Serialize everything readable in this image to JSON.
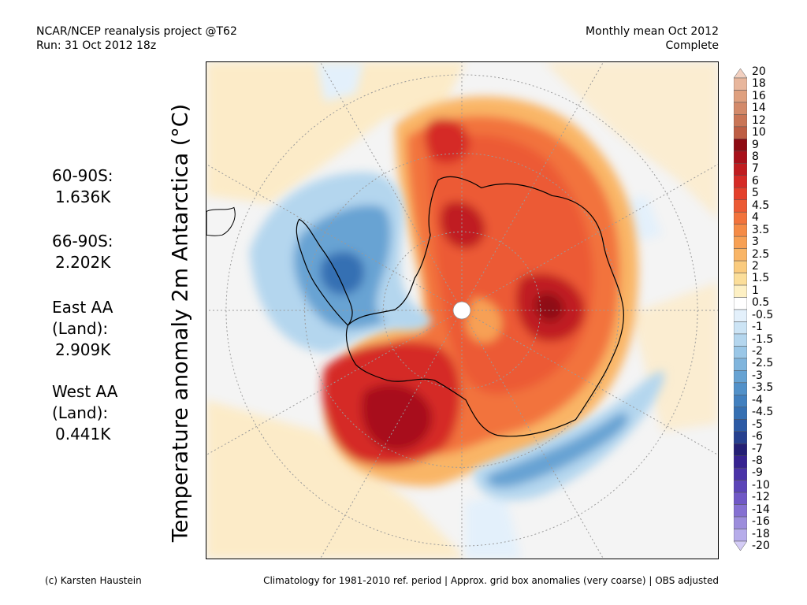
{
  "header": {
    "line1_left": "NCAR/NCEP reanalysis project @T62",
    "line2_left": "Run: 31 Oct 2012 18z",
    "line1_right": "Monthly mean Oct 2012",
    "line2_right": "Complete"
  },
  "ylabel": "Temperature anomaly 2m Antarctica (°C)",
  "stats": [
    {
      "lines": [
        "60-90S:",
        "1.636K"
      ]
    },
    {
      "lines": [
        "66-90S:",
        "2.202K"
      ]
    },
    {
      "lines": [
        "East AA",
        "(Land):",
        "2.909K"
      ]
    },
    {
      "lines": [
        "West AA",
        "(Land):",
        "0.441K"
      ]
    }
  ],
  "colorbar": {
    "labels": [
      "20",
      "18",
      "16",
      "14",
      "12",
      "10",
      "9",
      "8",
      "7",
      "6",
      "5",
      "4.5",
      "4",
      "3.5",
      "3",
      "2.5",
      "2",
      "1.5",
      "1",
      "0.5",
      "-0.5",
      "-1",
      "-1.5",
      "-2",
      "-2.5",
      "-3",
      "-3.5",
      "-4",
      "-4.5",
      "-5",
      "-6",
      "-7",
      "-8",
      "-9",
      "-10",
      "-12",
      "-14",
      "-16",
      "-18",
      "-20"
    ],
    "colors": [
      "#f2d0c0",
      "#e8b69c",
      "#dfa07f",
      "#d38a6a",
      "#c97556",
      "#be5e44",
      "#8e0a12",
      "#a8111b",
      "#c01d20",
      "#d52b26",
      "#e4402b",
      "#ec5a34",
      "#f2733c",
      "#f58b46",
      "#f7a054",
      "#f9b566",
      "#facb7e",
      "#fbde9a",
      "#fdf0c4",
      "#ffffff",
      "#e3f0fb",
      "#cce4f5",
      "#b4d6ee",
      "#9ac7e7",
      "#80b5dd",
      "#67a3d3",
      "#5291c9",
      "#4280bf",
      "#3670b3",
      "#2c5aa5",
      "#26408f",
      "#241f75",
      "#372391",
      "#4a33a8",
      "#5c45b8",
      "#7058c6",
      "#8570d2",
      "#9c8ddc",
      "#b6acea",
      "#d4ccf6"
    ]
  },
  "footer": {
    "credit": "(c) Karsten Haustein",
    "note": "Climatology for 1981-2010 ref. period | Approx. grid box anomalies (very coarse) | OBS adjusted"
  }
}
